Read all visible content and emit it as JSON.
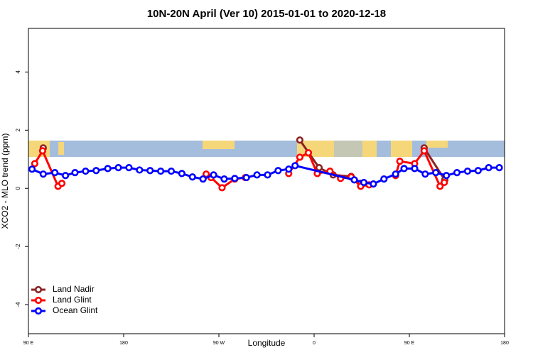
{
  "chart_data": {
    "type": "line",
    "title": "10N-20N April (Ver 10)   2015-01-01 to 2020-12-18",
    "x_label": "Longitude",
    "y_label": "XCO2 - MLO trend (ppm)",
    "xlim": [
      90,
      540
    ],
    "ylim": [
      -5,
      5.5
    ],
    "xticks": [
      {
        "value": 90,
        "label": "90 E"
      },
      180,
      {
        "value": 270,
        "label": "90 W"
      },
      {
        "value": 360,
        "label": "0"
      },
      {
        "value": 450,
        "label": "90 E"
      },
      {
        "value": 540,
        "label": "180"
      }
    ],
    "yticks": [
      -4,
      -2,
      0,
      2,
      4
    ],
    "legend": "bottom-left",
    "series": [
      {
        "name": "Land Nadir",
        "color": "#8b2323",
        "x": [
          104,
          200,
          346.5,
          364.7,
          378,
          395,
          404,
          420,
          464,
          483.5
        ],
        "values": [
          1.39,
          null,
          1.66,
          0.71,
          0.46,
          0.41,
          0.17,
          null,
          1.39,
          0.29
        ]
      },
      {
        "name": "Land Glint",
        "color": "#ff0000",
        "x": [
          96,
          103.4,
          118,
          121.6,
          200,
          258,
          262.6,
          273,
          285,
          295,
          320,
          336,
          346.5,
          354.6,
          363,
          375,
          385,
          395,
          404,
          412,
          420,
          437,
          441,
          455,
          464,
          479,
          483
        ],
        "values": [
          0.85,
          1.29,
          0.07,
          0.17,
          null,
          0.49,
          0.37,
          0.02,
          0.32,
          0.37,
          null,
          0.51,
          1.07,
          1.22,
          0.51,
          0.59,
          0.34,
          0.39,
          0.07,
          0.12,
          null,
          0.44,
          0.93,
          0.85,
          1.29,
          0.07,
          0.2
        ]
      },
      {
        "name": "Ocean Glint",
        "color": "#0000ff",
        "x": [
          93.4,
          104,
          115,
          125,
          134,
          144,
          154,
          165,
          175,
          185,
          195,
          205,
          215,
          225,
          235,
          245,
          255,
          265,
          275,
          285,
          296,
          306,
          316,
          326,
          336,
          342,
          398,
          407,
          416,
          426,
          437,
          445,
          455,
          465,
          475,
          485,
          495,
          505,
          515,
          525,
          535
        ],
        "values": [
          0.66,
          0.49,
          0.54,
          0.44,
          0.54,
          0.59,
          0.61,
          0.68,
          0.71,
          0.71,
          0.63,
          0.61,
          0.59,
          0.59,
          0.51,
          0.39,
          0.32,
          0.46,
          0.32,
          0.34,
          0.37,
          0.46,
          0.46,
          0.61,
          0.66,
          0.78,
          0.29,
          0.2,
          0.15,
          0.32,
          0.49,
          0.68,
          0.68,
          0.49,
          0.54,
          0.44,
          0.54,
          0.59,
          0.61,
          0.71,
          0.71
        ]
      }
    ]
  }
}
